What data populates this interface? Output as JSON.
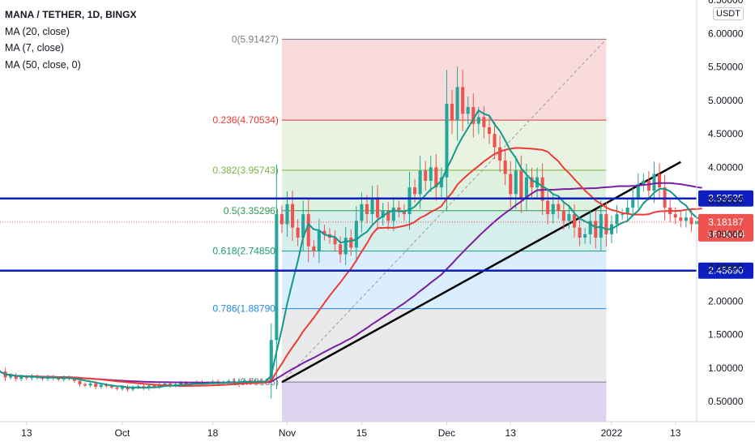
{
  "legend": {
    "title": "MANA / TETHER, 1D, BINGX",
    "indicators": [
      "MA (20, close)",
      "MA (7, close)",
      "MA (50, close, 0)"
    ]
  },
  "currency_label": "USDT",
  "colors": {
    "bull": "#26a69a",
    "bear": "#ef5350",
    "ma20": "#ef3b36",
    "ma7": "#12998c",
    "ma50": "#7b1fa2",
    "trendline": "#000000",
    "hline": "#0d1fbf",
    "price": "#ef5350"
  },
  "chart_data": {
    "type": "candlestick",
    "y_axis": {
      "range": [
        0.2,
        6.5
      ],
      "ticks": [
        "0.50000",
        "1.00000",
        "1.50000",
        "2.00000",
        "2.50000",
        "3.00000",
        "3.50000",
        "4.00000",
        "4.50000",
        "5.00000",
        "5.50000",
        "6.00000",
        "6.50000"
      ]
    },
    "x_axis": {
      "range": [
        "2021-09-08",
        "2022-01-17"
      ],
      "ticks": [
        {
          "date": "2021-09-13",
          "label": "13"
        },
        {
          "date": "2021-10-01",
          "label": "Oct"
        },
        {
          "date": "2021-10-18",
          "label": "18"
        },
        {
          "date": "2021-11-01",
          "label": "Nov"
        },
        {
          "date": "2021-11-15",
          "label": "15"
        },
        {
          "date": "2021-12-01",
          "label": "Dec"
        },
        {
          "date": "2021-12-13",
          "label": "13"
        },
        {
          "date": "2022-01-01",
          "label": "2022"
        },
        {
          "date": "2022-01-13",
          "label": "13"
        }
      ]
    },
    "candles_start_date": "2021-09-08",
    "close_prices": [
      0.95,
      0.86,
      0.89,
      0.84,
      0.87,
      0.85,
      0.88,
      0.86,
      0.84,
      0.87,
      0.85,
      0.83,
      0.86,
      0.84,
      0.81,
      0.76,
      0.74,
      0.77,
      0.72,
      0.75,
      0.73,
      0.71,
      0.69,
      0.72,
      0.68,
      0.71,
      0.73,
      0.7,
      0.74,
      0.72,
      0.75,
      0.77,
      0.74,
      0.76,
      0.78,
      0.75,
      0.77,
      0.79,
      0.76,
      0.78,
      0.8,
      0.77,
      0.79,
      0.81,
      0.78,
      0.8,
      0.82,
      0.79,
      0.81,
      0.8,
      0.8,
      1.42,
      3.3,
      3.15,
      3.45,
      3.1,
      2.95,
      3.3,
      2.82,
      2.75,
      3.05,
      3.0,
      2.95,
      2.85,
      2.7,
      2.95,
      2.8,
      3.2,
      3.45,
      3.3,
      3.55,
      3.25,
      3.35,
      3.2,
      3.4,
      3.35,
      3.3,
      3.7,
      3.6,
      3.95,
      3.8,
      4.0,
      3.7,
      3.85,
      4.95,
      4.7,
      5.2,
      4.8,
      4.9,
      4.65,
      4.75,
      4.6,
      4.5,
      4.3,
      4.1,
      3.9,
      3.6,
      3.95,
      3.55,
      3.85,
      3.7,
      3.85,
      3.5,
      3.3,
      3.45,
      3.35,
      3.2,
      3.3,
      3.1,
      2.95,
      3.0,
      3.2,
      2.95,
      3.3,
      3.0,
      3.15,
      3.3,
      3.3,
      3.4,
      3.55,
      3.75,
      3.8,
      3.65,
      3.9,
      3.7,
      3.4,
      3.3,
      3.25,
      3.2,
      3.25,
      3.15,
      3.2,
      3.18
    ],
    "overlays": {
      "fibonacci": {
        "start": "2021-10-31",
        "end": "2021-12-31",
        "levels": [
          {
            "ratio": "0",
            "price": 5.91427,
            "label": "0(5.91427)",
            "color": "#787b86"
          },
          {
            "ratio": "0.236",
            "price": 4.70534,
            "label": "0.236(4.70534)",
            "color": "#e53935"
          },
          {
            "ratio": "0.382",
            "price": 3.95743,
            "label": "0.382(3.95743)",
            "color": "#7cb342"
          },
          {
            "ratio": "0.5",
            "price": 3.35296,
            "label": "0.5(3.35296)",
            "color": "#2e9c4a"
          },
          {
            "ratio": "0.618",
            "price": 2.7485,
            "label": "0.618(2.74850)",
            "color": "#1a9c6e"
          },
          {
            "ratio": "0.786",
            "price": 1.8879,
            "label": "0.786(1.88790)",
            "color": "#1e88e5"
          },
          {
            "ratio": "1",
            "price": 0.79165,
            "label": "1(0.79165)",
            "color": "#787b86"
          }
        ]
      },
      "horizontal_lines": [
        {
          "price": 3.53535,
          "label": "3.53535"
        },
        {
          "price": 2.4569,
          "label": "2.45690"
        }
      ],
      "last_price": {
        "price": 3.18187,
        "label": "3.18187",
        "countdown": "16:45:44"
      }
    }
  }
}
